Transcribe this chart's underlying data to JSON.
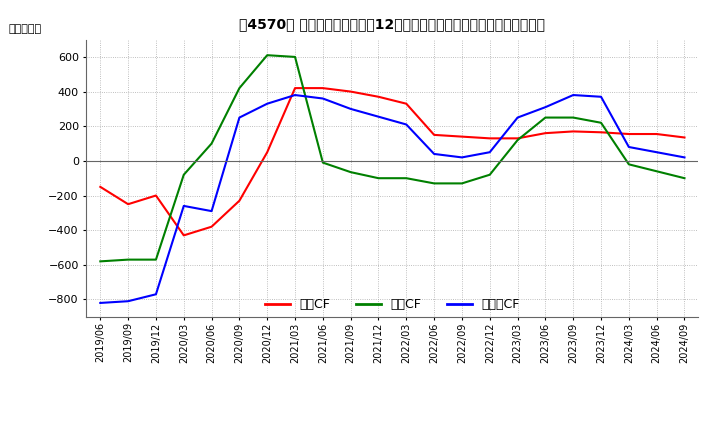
{
  "title": "[\u00004570\u0000] キャッシュフローの12か月移動合計の対前年同期増減額の推移",
  "title2": "［4570］ キャッシュフローの12か月移動合計の対前年同期増減額の推移",
  "ylabel": "（百万円）",
  "ylim": [
    -900,
    700
  ],
  "yticks": [
    -800,
    -600,
    -400,
    -200,
    0,
    200,
    400,
    600
  ],
  "legend_labels": [
    "営業CF",
    "投資CF",
    "フリーCF"
  ],
  "colors": {
    "営業CF": "#ff0000",
    "投資CF": "#008000",
    "フリーCF": "#0000ff"
  },
  "x_labels": [
    "2019/06",
    "2019/09",
    "2019/12",
    "2020/03",
    "2020/06",
    "2020/09",
    "2020/12",
    "2021/03",
    "2021/06",
    "2021/09",
    "2021/12",
    "2022/03",
    "2022/06",
    "2022/09",
    "2022/12",
    "2023/03",
    "2023/06",
    "2023/09",
    "2023/12",
    "2024/03",
    "2024/06",
    "2024/09"
  ],
  "営業CF": [
    -150,
    -250,
    -200,
    -430,
    -380,
    -230,
    50,
    420,
    420,
    400,
    370,
    330,
    150,
    140,
    130,
    130,
    160,
    170,
    165,
    155,
    155,
    135
  ],
  "投資CF": [
    -580,
    -570,
    -570,
    -80,
    100,
    420,
    610,
    600,
    -10,
    -65,
    -100,
    -100,
    -130,
    -130,
    -80,
    120,
    250,
    250,
    220,
    -20,
    -60,
    -100
  ],
  "フリーCF": [
    -820,
    -810,
    -770,
    -260,
    -290,
    250,
    330,
    380,
    360,
    300,
    255,
    210,
    40,
    20,
    50,
    250,
    310,
    380,
    370,
    80,
    50,
    20
  ]
}
